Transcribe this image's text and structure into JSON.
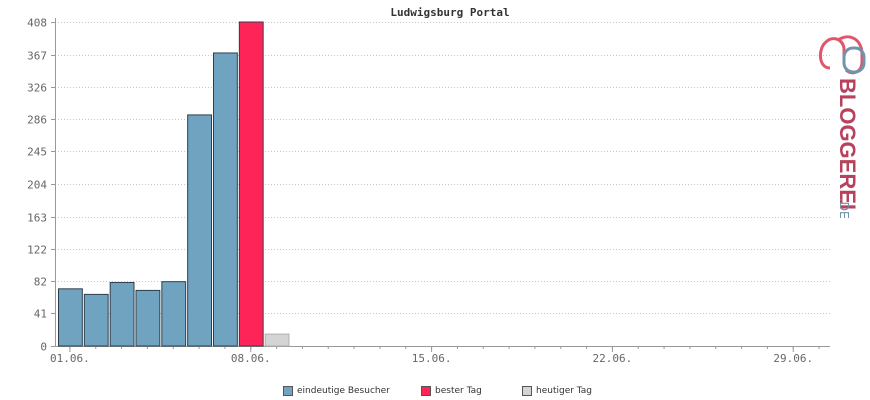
{
  "chart_data": {
    "type": "bar",
    "title": "Ludwigsburg Portal",
    "y_ticks": [
      "0",
      "41",
      "82",
      "122",
      "163",
      "204",
      "245",
      "286",
      "326",
      "367",
      "408"
    ],
    "ylim": [
      0,
      408
    ],
    "x_tick_labels": [
      "01.06.",
      "08.06.",
      "15.06.",
      "22.06.",
      "29.06."
    ],
    "x_tick_days": [
      1,
      8,
      15,
      22,
      29
    ],
    "days_in_month": 30,
    "grid": true,
    "legend_position": "bottom",
    "series": [
      {
        "name": "eindeutige Besucher",
        "color": "#6fa3bf",
        "points": [
          {
            "day": 1,
            "value": 72
          },
          {
            "day": 2,
            "value": 65
          },
          {
            "day": 3,
            "value": 80
          },
          {
            "day": 4,
            "value": 70
          },
          {
            "day": 5,
            "value": 81
          },
          {
            "day": 6,
            "value": 291
          },
          {
            "day": 7,
            "value": 369
          }
        ]
      },
      {
        "name": "bester Tag",
        "color": "#ff2457",
        "points": [
          {
            "day": 8,
            "value": 408
          }
        ]
      },
      {
        "name": "heutiger Tag",
        "color": "#d4d4d4",
        "points": [
          {
            "day": 9,
            "value": 15
          }
        ]
      }
    ]
  },
  "legend": {
    "visitors_label": "eindeutige Besucher",
    "best_label": "bester Tag",
    "today_label": "heutiger Tag"
  },
  "brand": {
    "logo_text": "BLOGGEREI.DE"
  },
  "colors": {
    "grid": "#c8c8c8",
    "axis": "#999999",
    "bar_stroke": "#2e3f4c"
  }
}
